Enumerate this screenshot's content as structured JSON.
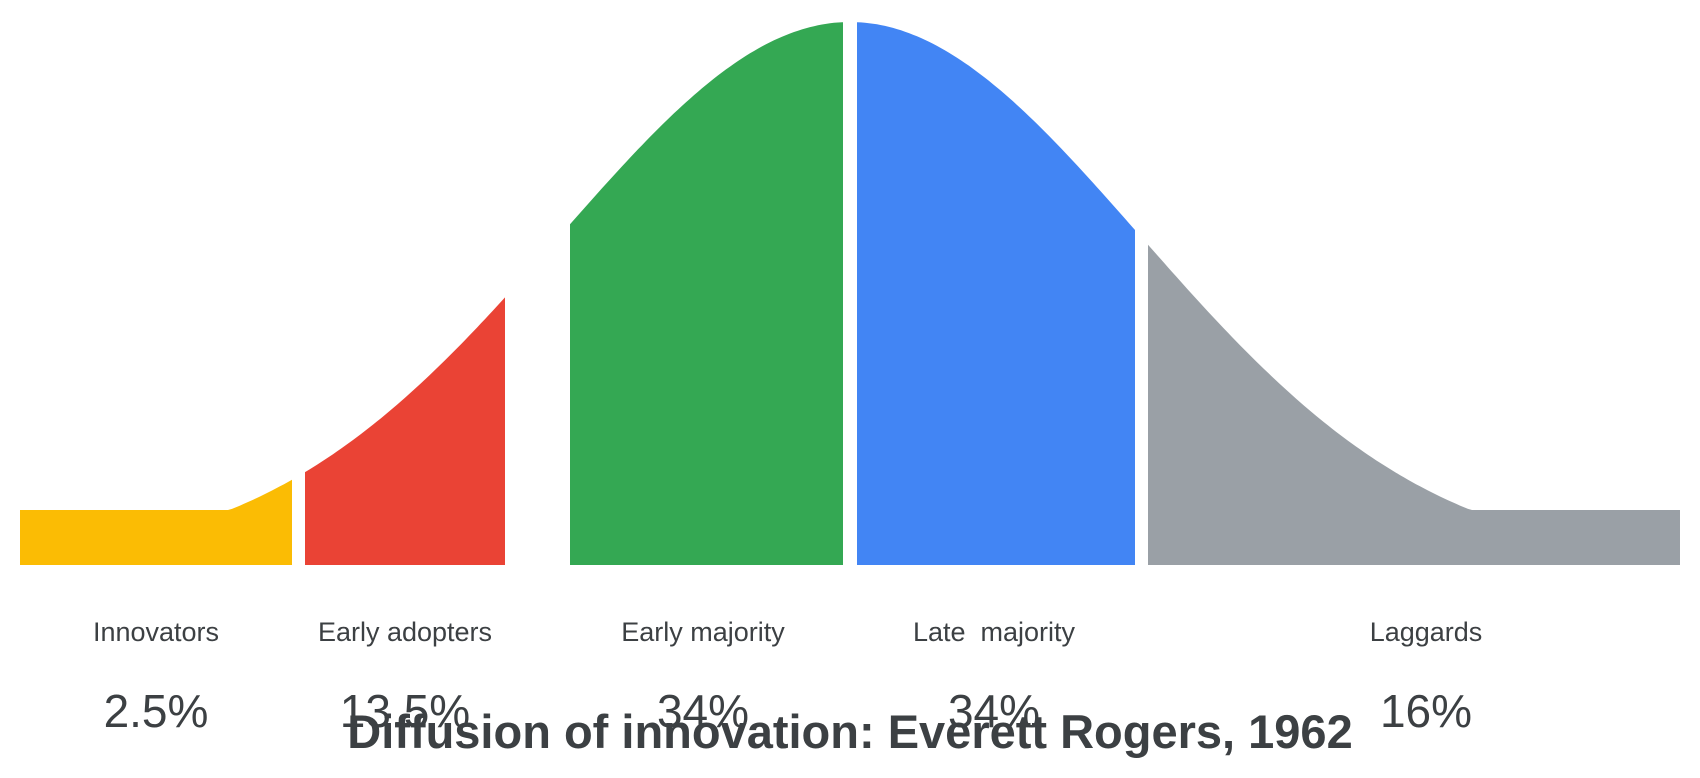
{
  "chart_data": {
    "type": "area",
    "title": "Diffusion of innovation: Everett Rogers, 1962",
    "xlabel": "",
    "ylabel": "",
    "grid": false,
    "legend": "none",
    "series": [
      {
        "name": "Innovators",
        "value": 2.5,
        "value_label": "2.5%",
        "color": "#FBBC04"
      },
      {
        "name": "Early adopters",
        "value": 13.5,
        "value_label": "13.5%",
        "color": "#EA4335"
      },
      {
        "name": "Early majority",
        "value": 34,
        "value_label": "34%",
        "color": "#34A853"
      },
      {
        "name": "Late  majority",
        "value": 34,
        "value_label": "34%",
        "color": "#4285F4"
      },
      {
        "name": "Laggards",
        "value": 16,
        "value_label": "16%",
        "color": "#9AA0A6"
      }
    ]
  }
}
